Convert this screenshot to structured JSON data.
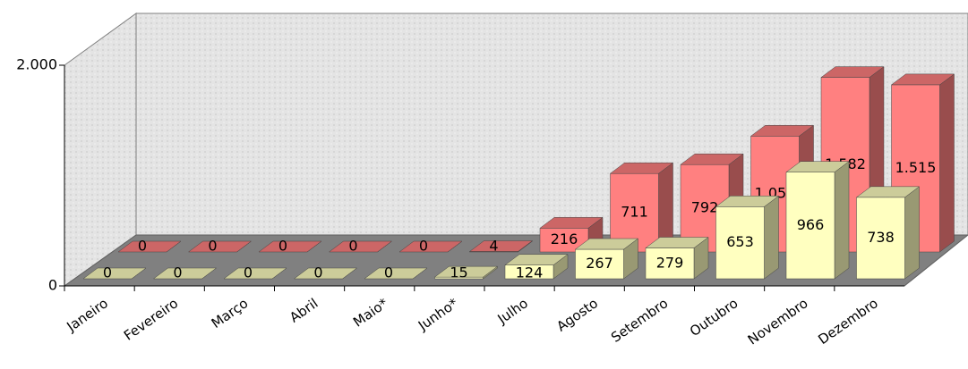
{
  "chart_data": {
    "type": "bar3d",
    "categories": [
      "Janeiro",
      "Fevereiro",
      "Março",
      "Abril",
      "Maio*",
      "Junho*",
      "Julho",
      "Agosto",
      "Setembro",
      "Outubro",
      "Novembro",
      "Dezembro"
    ],
    "series": [
      {
        "color": "#ff8080",
        "values": [
          0,
          0,
          0,
          0,
          0,
          4,
          216,
          711,
          792,
          1050,
          1582,
          1515
        ],
        "value_labels": [
          "0",
          "0",
          "0",
          "0",
          "0",
          "4",
          "216",
          "711",
          "792",
          "1.050",
          "1.582",
          "1.515"
        ]
      },
      {
        "color": "#ffffc0",
        "values": [
          0,
          0,
          0,
          0,
          0,
          15,
          124,
          267,
          279,
          653,
          966,
          738
        ]
      }
    ],
    "ylim": [
      0,
      2000
    ],
    "yticks": [
      0,
      {
        "value": 2000,
        "label": "2.000"
      }
    ]
  }
}
